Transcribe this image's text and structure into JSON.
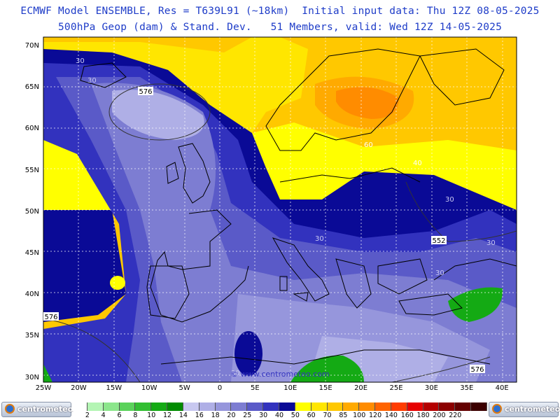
{
  "header": {
    "line1": "ECMWF Model ENSEMBLE, Res = T639L91 (~18km)  Initial input data: Thu 12Z 08-05-2025",
    "line2": "500hPa Geop (dam) & Stand. Dev.   51 Members, valid: Wed 12Z 14-05-2025"
  },
  "map": {
    "lat_labels": [
      "70N",
      "65N",
      "60N",
      "55N",
      "50N",
      "45N",
      "40N",
      "35N",
      "30N"
    ],
    "lon_labels": [
      "25W",
      "20W",
      "15W",
      "10W",
      "5W",
      "0",
      "5E",
      "10E",
      "15E",
      "20E",
      "25E",
      "30E",
      "35E",
      "40E"
    ],
    "contour_labels": {
      "geop": [
        "576",
        "552",
        "576",
        "576"
      ],
      "stddev": [
        "30",
        "30",
        "30",
        "30",
        "30",
        "30",
        "40",
        "60",
        "30"
      ]
    },
    "watermark": "© www.centrometeo.com"
  },
  "legend": {
    "values": [
      "2",
      "4",
      "6",
      "8",
      "10",
      "12",
      "14",
      "16",
      "18",
      "20",
      "25",
      "30",
      "40",
      "50",
      "60",
      "70",
      "85",
      "100",
      "120",
      "140",
      "160",
      "180",
      "200",
      "220"
    ],
    "colors": [
      "#ffffff",
      "#b4f5b4",
      "#8ce68c",
      "#5ad25a",
      "#32be32",
      "#14aa14",
      "#008c00",
      "#c8c8f0",
      "#afafe6",
      "#9696dc",
      "#7d7dd2",
      "#5a5ac8",
      "#3232be",
      "#0a0a96",
      "#ffff00",
      "#ffe600",
      "#ffc800",
      "#ffaa00",
      "#ff8c00",
      "#ff6400",
      "#ff3c00",
      "#e60000",
      "#b40000",
      "#8c0000",
      "#640000",
      "#3c0000"
    ],
    "logo_text": "centrometeo"
  }
}
